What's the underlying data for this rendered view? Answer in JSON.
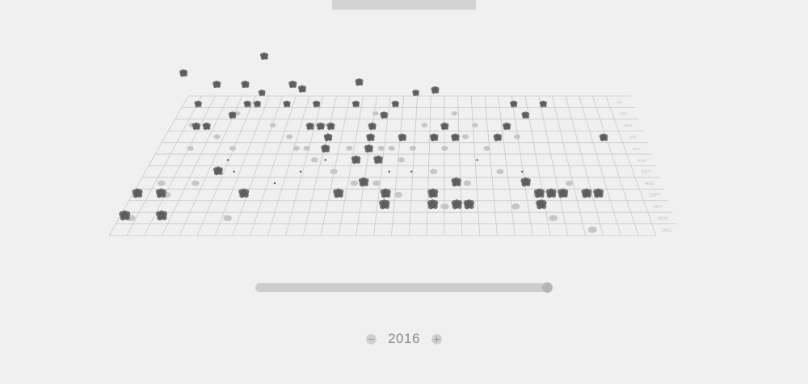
{
  "header": {
    "tab_label": ""
  },
  "chart_data": {
    "type": "scatter",
    "title": "",
    "y_categories": [
      "JAN",
      "FEB",
      "MAR",
      "APR",
      "MAY",
      "JUNE",
      "JULY",
      "AUG",
      "SEPT",
      "OCT",
      "NOV",
      "DEC"
    ],
    "x_columns": 31,
    "grid": true,
    "cluster_points": [
      [
        1,
        9
      ],
      [
        1,
        11
      ],
      [
        2,
        1
      ],
      [
        3,
        3
      ],
      [
        3,
        9
      ],
      [
        4,
        3
      ],
      [
        4,
        11
      ],
      [
        6,
        2
      ],
      [
        7,
        1
      ],
      [
        7,
        7
      ],
      [
        8,
        0
      ],
      [
        8,
        1
      ],
      [
        10,
        9
      ],
      [
        11,
        1
      ],
      [
        14,
        1
      ],
      [
        14,
        3
      ],
      [
        15,
        3
      ],
      [
        16,
        3
      ],
      [
        16,
        4
      ],
      [
        16,
        5
      ],
      [
        18,
        1
      ],
      [
        18,
        9
      ],
      [
        19,
        6
      ],
      [
        20,
        3
      ],
      [
        20,
        4
      ],
      [
        20,
        5
      ],
      [
        20,
        8
      ],
      [
        21,
        2
      ],
      [
        21,
        6
      ],
      [
        22,
        1
      ],
      [
        22,
        9
      ],
      [
        22,
        10
      ],
      [
        23,
        4
      ],
      [
        24,
        0
      ],
      [
        26,
        4
      ],
      [
        26,
        9
      ],
      [
        26,
        10
      ],
      [
        27,
        3
      ],
      [
        28,
        4
      ],
      [
        28,
        8
      ],
      [
        28,
        10
      ],
      [
        29,
        10
      ],
      [
        32,
        4
      ],
      [
        33,
        3
      ],
      [
        34,
        1
      ],
      [
        34,
        8
      ],
      [
        35,
        2
      ],
      [
        35,
        9
      ],
      [
        35,
        10
      ],
      [
        36,
        9
      ],
      [
        37,
        1
      ],
      [
        37,
        9
      ],
      [
        39,
        9
      ],
      [
        40,
        9
      ],
      [
        42,
        4
      ]
    ],
    "floaters": [
      [
        -0.5,
        -2
      ],
      [
        8,
        -3.5
      ],
      [
        3,
        -1
      ],
      [
        6,
        -1
      ],
      [
        11,
        -1
      ],
      [
        12,
        -0.6
      ],
      [
        18,
        -1.2
      ],
      [
        26,
        -0.5
      ]
    ],
    "shadow_points": [
      [
        1,
        10
      ],
      [
        2,
        2
      ],
      [
        2,
        7
      ],
      [
        3,
        4
      ],
      [
        3,
        8
      ],
      [
        5,
        3
      ],
      [
        5,
        7
      ],
      [
        6,
        1
      ],
      [
        7,
        4
      ],
      [
        9,
        10
      ],
      [
        10,
        2
      ],
      [
        12,
        3
      ],
      [
        13,
        4
      ],
      [
        14,
        4
      ],
      [
        15,
        2
      ],
      [
        15,
        5
      ],
      [
        17,
        6
      ],
      [
        18,
        4
      ],
      [
        19,
        7
      ],
      [
        20,
        1
      ],
      [
        21,
        4
      ],
      [
        21,
        7
      ],
      [
        22,
        4
      ],
      [
        23,
        5
      ],
      [
        23,
        8
      ],
      [
        24,
        4
      ],
      [
        25,
        2
      ],
      [
        26,
        6
      ],
      [
        27,
        4
      ],
      [
        27,
        9
      ],
      [
        28,
        1
      ],
      [
        29,
        3
      ],
      [
        29,
        7
      ],
      [
        30,
        2
      ],
      [
        31,
        4
      ],
      [
        32,
        6
      ],
      [
        33,
        9
      ],
      [
        34,
        3
      ],
      [
        35,
        8
      ],
      [
        36,
        10
      ],
      [
        38,
        7
      ],
      [
        39,
        11
      ]
    ],
    "tiny_points": [
      [
        7,
        5
      ],
      [
        8,
        6
      ],
      [
        12,
        7
      ],
      [
        14,
        6
      ],
      [
        16,
        5
      ],
      [
        21,
        5
      ],
      [
        22,
        6
      ],
      [
        24,
        6
      ],
      [
        26,
        8
      ],
      [
        30,
        5
      ],
      [
        34,
        6
      ]
    ]
  },
  "slider": {
    "value": 1.0
  },
  "year_control": {
    "year": "2016",
    "decrement_icon": "minus-icon",
    "increment_icon": "plus-icon",
    "decrement_glyph": "−",
    "increment_glyph": "+"
  },
  "colors": {
    "background": "#f0f0f0",
    "grid_line": "#c8c8c8",
    "cluster": "#5a5a5a",
    "shadow": "#c6c6c6",
    "month_label": "#bdbdbd"
  }
}
